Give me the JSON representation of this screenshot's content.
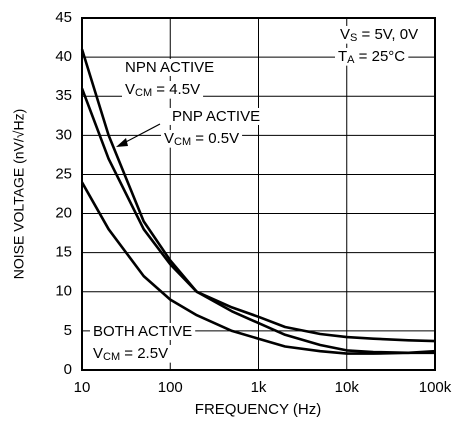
{
  "chart_data": {
    "type": "line",
    "xscale": "log",
    "grid": true,
    "xlabel": "FREQUENCY (Hz)",
    "ylabel": "NOISE VOLTAGE (nV/√Hz)",
    "xlim": [
      10,
      100000
    ],
    "ylim": [
      0,
      45
    ],
    "xticks": [
      10,
      100,
      {
        "value": 1000,
        "label": "1k"
      },
      {
        "value": 10000,
        "label": "10k"
      },
      {
        "value": 100000,
        "label": "100k"
      }
    ],
    "yticks": [
      0,
      5,
      10,
      15,
      20,
      25,
      30,
      35,
      40,
      45
    ],
    "x": [
      10,
      20,
      50,
      100,
      200,
      500,
      1000,
      2000,
      5000,
      10000,
      20000,
      50000,
      100000
    ],
    "series": [
      {
        "color": "#000000",
        "values": [
          41,
          30,
          19,
          14,
          10,
          7.5,
          6,
          4.5,
          3.2,
          2.5,
          2.3,
          2.2,
          2.2
        ]
      },
      {
        "color": "#000000",
        "values": [
          36,
          27,
          18,
          13.5,
          10,
          8,
          6.8,
          5.5,
          4.6,
          4.2,
          4,
          3.8,
          3.7
        ]
      },
      {
        "color": "#000000",
        "values": [
          24,
          18,
          12,
          9,
          7,
          5,
          4,
          3,
          2.4,
          2.1,
          2.1,
          2.2,
          2.4
        ]
      }
    ],
    "annotations": [
      {
        "lines": [
          [
            {
              "t": "NPN ACTIVE"
            }
          ],
          [
            {
              "t": "V"
            },
            {
              "t": "CM",
              "sub": true
            },
            {
              "t": " = 4.5V"
            }
          ]
        ]
      },
      {
        "lines": [
          [
            {
              "t": "PNP ACTIVE"
            }
          ],
          [
            {
              "t": "V"
            },
            {
              "t": "CM",
              "sub": true
            },
            {
              "t": " = 0.5V"
            }
          ]
        ]
      },
      {
        "lines": [
          [
            {
              "t": "BOTH ACTIVE"
            }
          ],
          [
            {
              "t": "V"
            },
            {
              "t": "CM",
              "sub": true
            },
            {
              "t": " = 2.5V"
            }
          ]
        ]
      },
      {
        "lines": [
          [
            {
              "t": "V"
            },
            {
              "t": "S",
              "sub": true
            },
            {
              "t": " = 5V, 0V"
            }
          ],
          [
            {
              "t": "T"
            },
            {
              "t": "A",
              "sub": true
            },
            {
              "t": " = 25°C"
            }
          ]
        ]
      }
    ]
  }
}
